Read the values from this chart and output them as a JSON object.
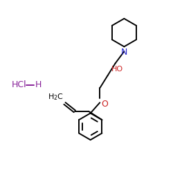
{
  "bg_color": "#ffffff",
  "bond_color": "#000000",
  "N_color": "#2222cc",
  "O_color": "#cc2222",
  "HCl_color": "#882299",
  "lw": 1.4,
  "figsize": [
    2.5,
    2.5
  ],
  "dpi": 100,
  "xlim": [
    0,
    10
  ],
  "ylim": [
    0,
    10
  ]
}
